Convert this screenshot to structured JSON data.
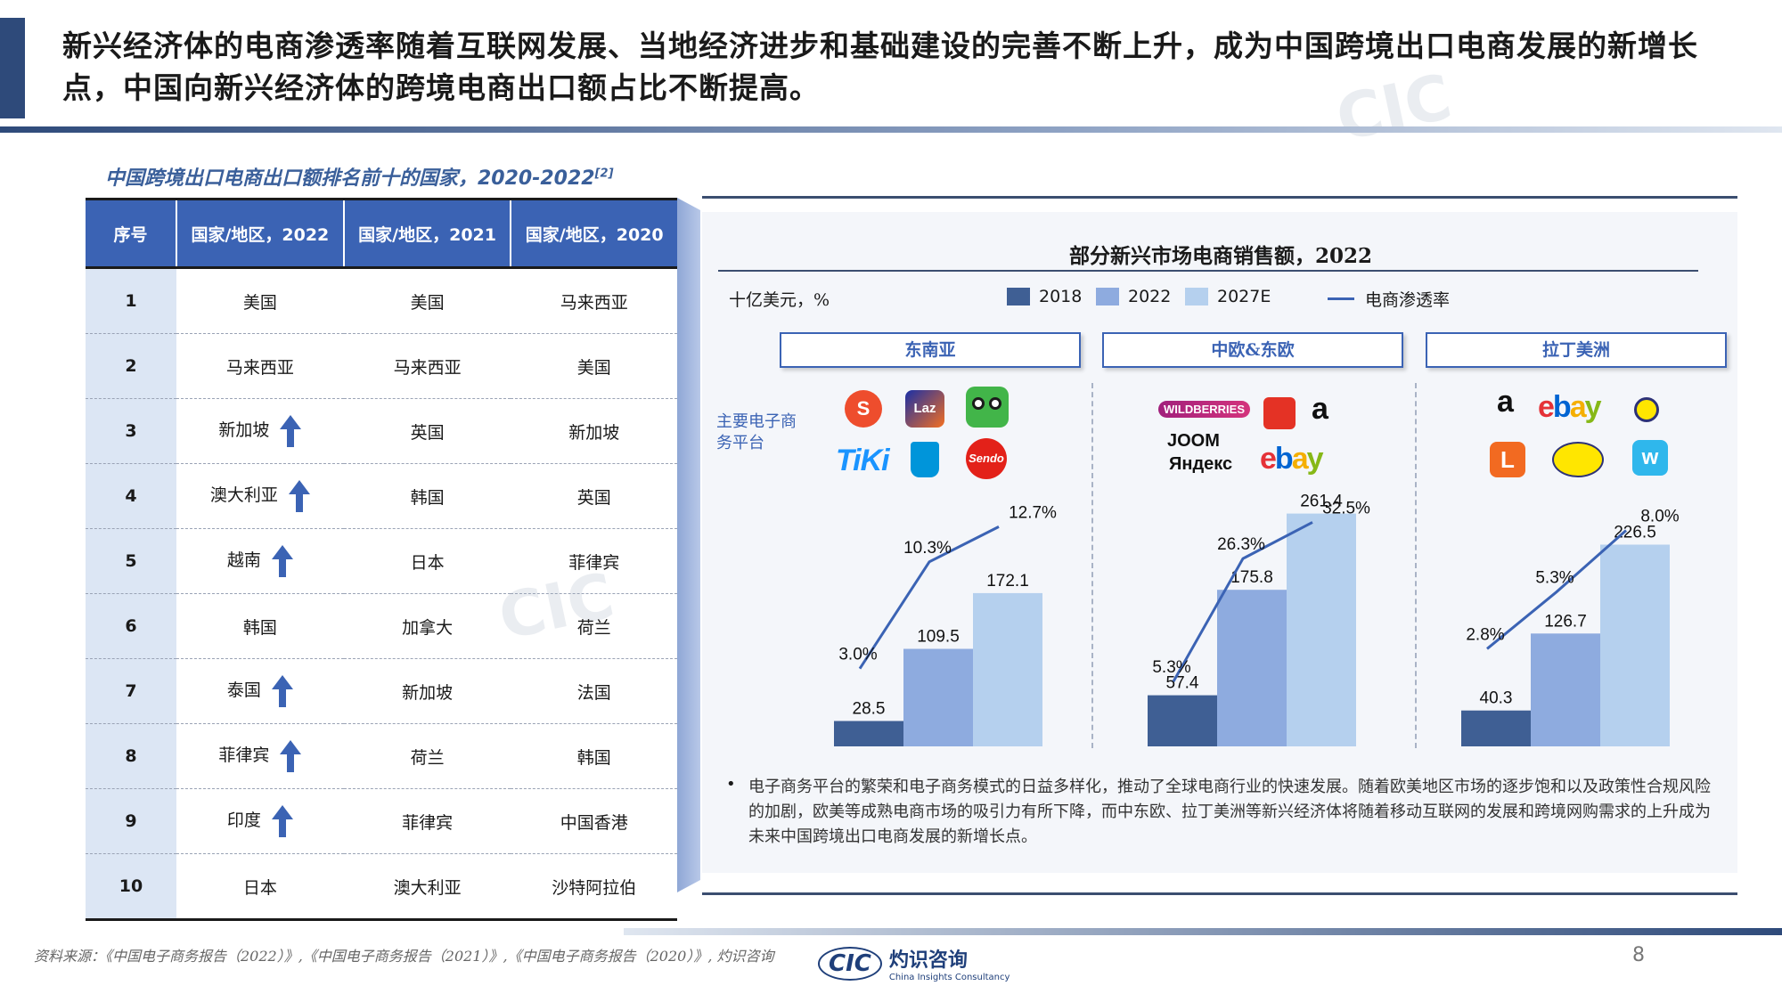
{
  "headline": "新兴经济体的电商渗透率随着互联网发展、当地经济进步和基础建设的完善不断上升，成为中国跨境出口电商发展的新增长点，中国向新兴经济体的跨境电商出口额占比不断提高。",
  "table": {
    "title": "中国跨境出口电商出口额排名前十的国家，2020-2022",
    "title_ref": "[2]",
    "headers": [
      "序号",
      "国家/地区，2022",
      "国家/地区，2021",
      "国家/地区，2020"
    ],
    "rows": [
      {
        "rank": "1",
        "y2022": "美国",
        "y2021": "美国",
        "y2020": "马来西亚",
        "up": false
      },
      {
        "rank": "2",
        "y2022": "马来西亚",
        "y2021": "马来西亚",
        "y2020": "美国",
        "up": false
      },
      {
        "rank": "3",
        "y2022": "新加坡",
        "y2021": "英国",
        "y2020": "新加坡",
        "up": true
      },
      {
        "rank": "4",
        "y2022": "澳大利亚",
        "y2021": "韩国",
        "y2020": "英国",
        "up": true
      },
      {
        "rank": "5",
        "y2022": "越南",
        "y2021": "日本",
        "y2020": "菲律宾",
        "up": true
      },
      {
        "rank": "6",
        "y2022": "韩国",
        "y2021": "加拿大",
        "y2020": "荷兰",
        "up": false
      },
      {
        "rank": "7",
        "y2022": "泰国",
        "y2021": "新加坡",
        "y2020": "法国",
        "up": true
      },
      {
        "rank": "8",
        "y2022": "菲律宾",
        "y2021": "荷兰",
        "y2020": "韩国",
        "up": true
      },
      {
        "rank": "9",
        "y2022": "印度",
        "y2021": "菲律宾",
        "y2020": "中国香港",
        "up": true
      },
      {
        "rank": "10",
        "y2022": "日本",
        "y2021": "澳大利亚",
        "y2020": "沙特阿拉伯",
        "up": false
      }
    ],
    "arrow_color": "#3b63b4"
  },
  "chart_data": {
    "type": "bar",
    "title": "部分新兴市场电商销售额，2022",
    "unit_label": "十亿美元，%",
    "legend": [
      {
        "name": "2018",
        "color": "#3f5f94"
      },
      {
        "name": "2022",
        "color": "#8eabdf"
      },
      {
        "name": "2027E",
        "color": "#b5d0ee"
      },
      {
        "name": "电商渗透率",
        "color": "#3b63b4",
        "kind": "line"
      }
    ],
    "platform_label": "主要电子商务平台",
    "groups": [
      {
        "name": "东南亚",
        "values": [
          28.5,
          109.5,
          172.1
        ],
        "value_labels": [
          "28.5",
          "109.5",
          "172.1"
        ],
        "penetration": [
          3.0,
          10.3,
          12.7
        ],
        "penetration_labels": [
          "3.0%",
          "10.3%",
          "12.7%"
        ],
        "platforms": [
          "S",
          "Laz",
          "tokopedia",
          "TiKi",
          "blibli",
          "Sendo"
        ]
      },
      {
        "name": "中欧&东欧",
        "values": [
          57.4,
          175.8,
          261.4
        ],
        "value_labels": [
          "57.4",
          "175.8",
          "261.4"
        ],
        "penetration": [
          5.3,
          26.3,
          32.5
        ],
        "penetration_labels": [
          "5.3%",
          "26.3%",
          "32.5%"
        ],
        "platforms": [
          "WILDBERRIES",
          "AliExpress",
          "a",
          "JOOM",
          "Яндекс",
          "ebay"
        ]
      },
      {
        "name": "拉丁美洲",
        "values": [
          40.3,
          126.7,
          226.5
        ],
        "value_labels": [
          "40.3",
          "126.7",
          "226.5"
        ],
        "penetration": [
          2.8,
          5.3,
          8.0
        ],
        "penetration_labels": [
          "2.8%",
          "5.3%",
          "8.0%"
        ],
        "platforms": [
          "a",
          "ebay",
          "Mercado",
          "L",
          "Mercado Libre",
          "w"
        ]
      }
    ]
  },
  "bullet": "电子商务平台的繁荣和电子商务模式的日益多样化，推动了全球电商行业的快速发展。随着欧美地区市场的逐步饱和以及政策性合规风险的加剧，欧美等成熟电商市场的吸引力有所下降，而中东欧、拉丁美洲等新兴经济体将随着移动互联网的发展和跨境网购需求的上升成为未来中国跨境出口电商发展的新增长点。",
  "footer": {
    "source": "资料来源：《中国电子商务报告（2022）》,《中国电子商务报告（2021）》,《中国电子商务报告（2020）》, 灼识咨询",
    "logo_cn": "灼识咨询",
    "logo_en": "China Insights Consultancy",
    "logo_mark": "CIC",
    "page": "8"
  }
}
